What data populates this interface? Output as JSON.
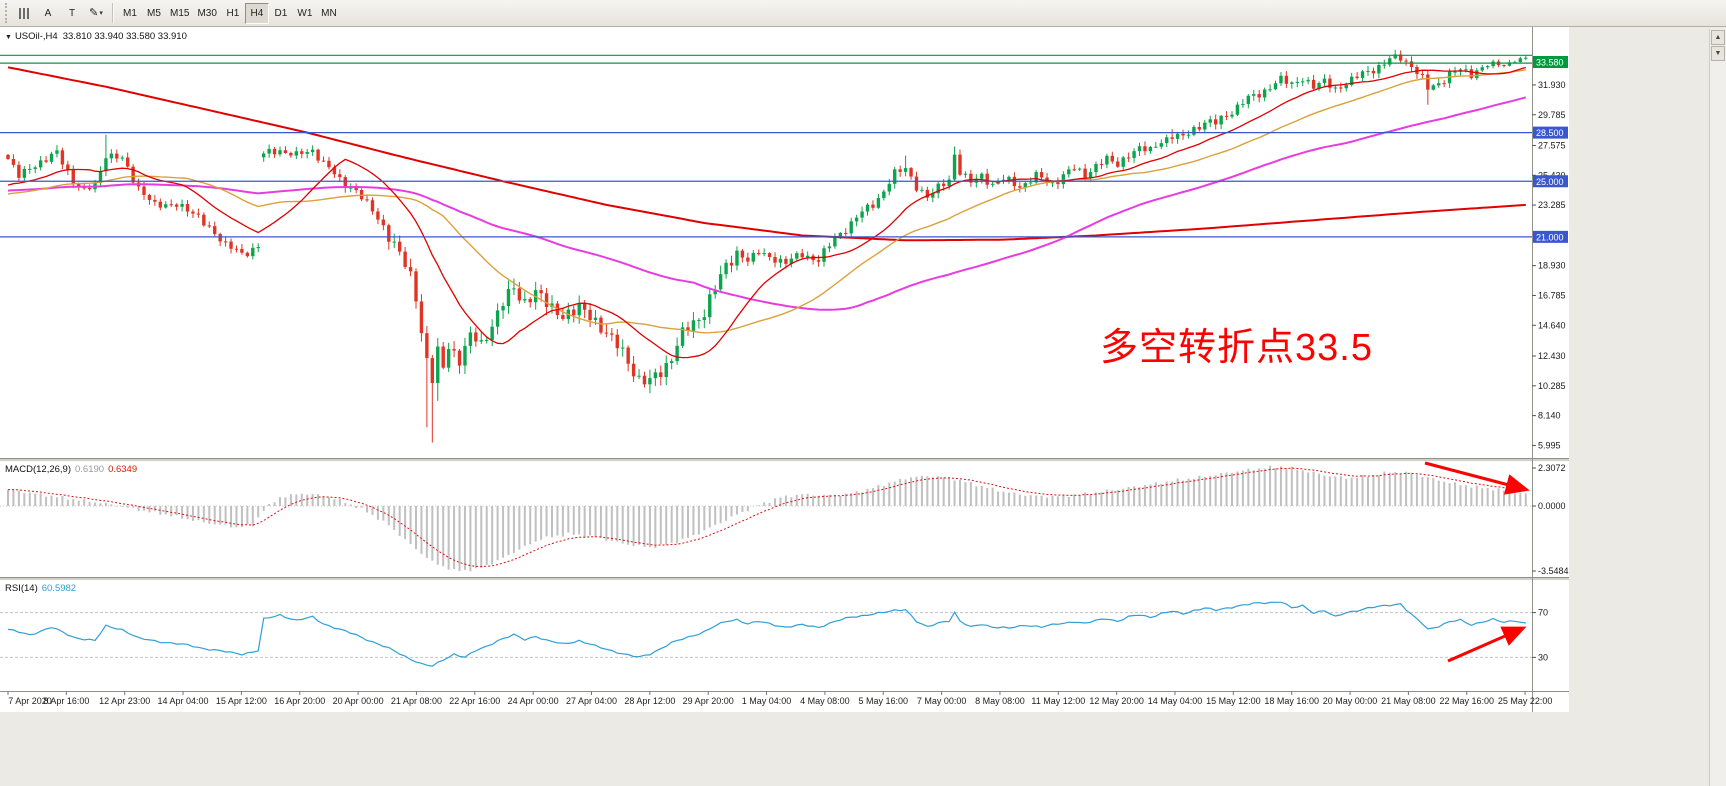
{
  "toolbar": {
    "buttons": [
      {
        "label": "A"
      },
      {
        "label": "T"
      }
    ],
    "timeframes": [
      "M1",
      "M5",
      "M15",
      "M30",
      "H1",
      "H4",
      "D1",
      "W1",
      "MN"
    ],
    "active_timeframe": "H4"
  },
  "icons": {
    "symbol_dropdown": "▼",
    "pencil": "✎",
    "caret": "▾",
    "scroll_up": "▲",
    "scroll_down": "▼"
  },
  "main_chart": {
    "symbol_period": "USOil-,H4",
    "ohlc": "33.810 33.940 33.580 33.910",
    "annotation": "多空转折点33.5",
    "price_ticks": [
      "31.930",
      "29.785",
      "27.575",
      "25.430",
      "23.285",
      "18.930",
      "16.785",
      "14.640",
      "12.430",
      "10.285",
      "8.140",
      "5.995"
    ],
    "badges": [
      {
        "label": "33.580",
        "price": 33.58,
        "color": "#009a3e"
      },
      {
        "label": "28.500",
        "price": 28.5,
        "color": "#3a57d0"
      },
      {
        "label": "25.000",
        "price": 25.0,
        "color": "#3a57d0"
      },
      {
        "label": "21.000",
        "price": 21.0,
        "color": "#3a57d0"
      }
    ],
    "hlines": [
      {
        "price": 34.06,
        "color": "#009a3e"
      },
      {
        "price": 33.5,
        "color": "#009a3e"
      },
      {
        "price": 28.5,
        "color": "#3a57d0"
      },
      {
        "price": 25.0,
        "color": "#3a57d0"
      },
      {
        "price": 21.0,
        "color": "#3a57d0"
      }
    ]
  },
  "macd": {
    "title": "MACD(12,26,9)",
    "value_main": "0.6190",
    "value_signal": "0.6349",
    "ticks": [
      "2.3072",
      "0.0000",
      "-3.5484"
    ]
  },
  "rsi": {
    "title": "RSI(14)",
    "value": "60.5982",
    "levels": [
      "70",
      "30"
    ]
  },
  "time_axis": {
    "labels": [
      "7 Apr 2020",
      "8 Apr 16:00",
      "12 Apr 23:00",
      "14 Apr 04:00",
      "15 Apr 12:00",
      "16 Apr 20:00",
      "20 Apr 00:00",
      "21 Apr 08:00",
      "22 Apr 16:00",
      "24 Apr 00:00",
      "27 Apr 04:00",
      "28 Apr 12:00",
      "29 Apr 20:00",
      "1 May 04:00",
      "4 May 08:00",
      "5 May 16:00",
      "7 May 00:00",
      "8 May 08:00",
      "11 May 12:00",
      "12 May 20:00",
      "14 May 04:00",
      "15 May 12:00",
      "18 May 16:00",
      "20 May 00:00",
      "21 May 08:00",
      "22 May 16:00",
      "25 May 22:00"
    ]
  },
  "colors": {
    "candle_up": "#0ca44c",
    "candle_down": "#e03424",
    "ma_red": "#e00000",
    "ma_orange": "#dba13c",
    "ma_magenta": "#e83ce0",
    "macd_bar": "#c0c0c0",
    "macd_signal": "#e01010",
    "rsi_line": "#2e9fd9",
    "annotation_red": "#ff0000",
    "hline_blue": "#3a57d0",
    "hline_green": "#009a3e"
  },
  "chart_data": {
    "type": "candlestick",
    "symbol": "USOil-",
    "timeframe": "H4",
    "current_ohlc": {
      "open": 33.81,
      "high": 33.94,
      "low": 33.58,
      "close": 33.91
    },
    "n_candles": 280,
    "levels": {
      "resistance": [
        34.06,
        33.5
      ],
      "support": [
        28.5,
        25.0,
        21.0
      ]
    },
    "close_anchors": [
      [
        0,
        26.6
      ],
      [
        2,
        25.4
      ],
      [
        5,
        26.2
      ],
      [
        9,
        27.0
      ],
      [
        12,
        25.1
      ],
      [
        14,
        24.2
      ],
      [
        16,
        24.7
      ],
      [
        18,
        27.0
      ],
      [
        21,
        26.5
      ],
      [
        24,
        24.6
      ],
      [
        27,
        23.2
      ],
      [
        31,
        23.4
      ],
      [
        35,
        22.4
      ],
      [
        38,
        21.3
      ],
      [
        40,
        20.4
      ],
      [
        43,
        19.8
      ],
      [
        46,
        20.3
      ],
      [
        47,
        26.9
      ],
      [
        50,
        27.3
      ],
      [
        53,
        26.8
      ],
      [
        56,
        27.3
      ],
      [
        58,
        26.3
      ],
      [
        61,
        25.1
      ],
      [
        64,
        24.3
      ],
      [
        67,
        22.9
      ],
      [
        70,
        21.1
      ],
      [
        72,
        19.9
      ],
      [
        74,
        18.0
      ],
      [
        75,
        16.6
      ],
      [
        76,
        14.2
      ],
      [
        77,
        12.3
      ],
      [
        78,
        10.9
      ],
      [
        79,
        12.6
      ],
      [
        80,
        11.4
      ],
      [
        81,
        13.0
      ],
      [
        83,
        12.4
      ],
      [
        85,
        13.8
      ],
      [
        87,
        13.1
      ],
      [
        89,
        14.9
      ],
      [
        91,
        16.2
      ],
      [
        93,
        17.2
      ],
      [
        95,
        16.4
      ],
      [
        97,
        17.0
      ],
      [
        99,
        16.2
      ],
      [
        102,
        15.3
      ],
      [
        105,
        15.9
      ],
      [
        108,
        14.9
      ],
      [
        110,
        14.2
      ],
      [
        112,
        13.1
      ],
      [
        114,
        12.0
      ],
      [
        116,
        10.9
      ],
      [
        118,
        10.4
      ],
      [
        120,
        11.3
      ],
      [
        122,
        12.5
      ],
      [
        124,
        13.9
      ],
      [
        126,
        14.8
      ],
      [
        128,
        15.7
      ],
      [
        130,
        17.3
      ],
      [
        132,
        18.9
      ],
      [
        134,
        19.9
      ],
      [
        136,
        19.3
      ],
      [
        138,
        19.9
      ],
      [
        140,
        19.5
      ],
      [
        143,
        19.2
      ],
      [
        146,
        19.7
      ],
      [
        149,
        19.4
      ],
      [
        151,
        20.3
      ],
      [
        153,
        21.3
      ],
      [
        155,
        22.0
      ],
      [
        157,
        22.7
      ],
      [
        159,
        23.4
      ],
      [
        161,
        24.3
      ],
      [
        163,
        25.5
      ],
      [
        165,
        26.0
      ],
      [
        167,
        24.6
      ],
      [
        169,
        23.8
      ],
      [
        171,
        24.6
      ],
      [
        173,
        25.1
      ],
      [
        174,
        26.9
      ],
      [
        175,
        25.7
      ],
      [
        177,
        24.9
      ],
      [
        179,
        25.4
      ],
      [
        181,
        24.8
      ],
      [
        183,
        25.1
      ],
      [
        186,
        24.7
      ],
      [
        189,
        25.3
      ],
      [
        192,
        24.9
      ],
      [
        194,
        25.4
      ],
      [
        196,
        25.9
      ],
      [
        198,
        25.5
      ],
      [
        200,
        26.1
      ],
      [
        202,
        26.6
      ],
      [
        204,
        26.2
      ],
      [
        206,
        26.9
      ],
      [
        208,
        27.4
      ],
      [
        210,
        27.2
      ],
      [
        212,
        27.9
      ],
      [
        214,
        28.3
      ],
      [
        216,
        28.1
      ],
      [
        218,
        28.8
      ],
      [
        220,
        29.3
      ],
      [
        222,
        29.1
      ],
      [
        224,
        29.8
      ],
      [
        226,
        30.4
      ],
      [
        228,
        30.9
      ],
      [
        230,
        31.3
      ],
      [
        232,
        31.8
      ],
      [
        234,
        32.3
      ],
      [
        236,
        32.0
      ],
      [
        238,
        32.4
      ],
      [
        240,
        31.8
      ],
      [
        242,
        32.2
      ],
      [
        244,
        31.6
      ],
      [
        246,
        32.1
      ],
      [
        248,
        32.5
      ],
      [
        250,
        32.9
      ],
      [
        252,
        33.3
      ],
      [
        254,
        33.7
      ],
      [
        256,
        33.9
      ],
      [
        258,
        33.4
      ],
      [
        260,
        32.3
      ],
      [
        261,
        31.6
      ],
      [
        263,
        32.1
      ],
      [
        265,
        32.7
      ],
      [
        267,
        33.0
      ],
      [
        269,
        32.7
      ],
      [
        271,
        33.2
      ],
      [
        273,
        33.5
      ],
      [
        275,
        33.3
      ],
      [
        277,
        33.7
      ],
      [
        279,
        33.91
      ]
    ],
    "special_wicks": [
      {
        "i": 9,
        "high": 27.6
      },
      {
        "i": 18,
        "high": 28.35
      },
      {
        "i": 44,
        "low": 19.55
      },
      {
        "i": 77,
        "low": 7.3
      },
      {
        "i": 78,
        "low": 6.2
      },
      {
        "i": 79,
        "low": 9.2
      },
      {
        "i": 93,
        "high": 18.0
      },
      {
        "i": 118,
        "low": 9.75
      },
      {
        "i": 165,
        "high": 26.85
      },
      {
        "i": 174,
        "high": 27.5
      },
      {
        "i": 214,
        "high": 28.75
      },
      {
        "i": 234,
        "high": 32.65
      },
      {
        "i": 254,
        "high": 34.0
      },
      {
        "i": 256,
        "high": 34.3
      },
      {
        "i": 261,
        "low": 30.5
      }
    ],
    "gap_opens": [
      {
        "i": 47,
        "open": 26.72
      }
    ],
    "ma_slow_anchors": [
      [
        0,
        33.2
      ],
      [
        18,
        31.8
      ],
      [
        36,
        30.2
      ],
      [
        55,
        28.5
      ],
      [
        73,
        26.7
      ],
      [
        91,
        25.0
      ],
      [
        110,
        23.3
      ],
      [
        128,
        22.0
      ],
      [
        146,
        21.1
      ],
      [
        165,
        20.75
      ],
      [
        183,
        20.8
      ],
      [
        200,
        21.1
      ],
      [
        220,
        21.6
      ],
      [
        240,
        22.2
      ],
      [
        260,
        22.8
      ],
      [
        279,
        23.3
      ]
    ],
    "ma_periods": {
      "fast_red": 16,
      "orange": 34,
      "magenta": 80
    },
    "macd_range": [
      -3.5484,
      2.3072
    ],
    "macd_current": {
      "main": 0.619,
      "signal": 0.6349
    },
    "macd_anchors": [
      [
        0,
        0.85
      ],
      [
        6,
        0.6
      ],
      [
        12,
        0.35
      ],
      [
        18,
        0.12
      ],
      [
        24,
        -0.2
      ],
      [
        30,
        -0.5
      ],
      [
        36,
        -0.85
      ],
      [
        42,
        -1.1
      ],
      [
        45,
        -1.0
      ],
      [
        47,
        -0.2
      ],
      [
        50,
        0.45
      ],
      [
        54,
        0.65
      ],
      [
        58,
        0.55
      ],
      [
        62,
        0.2
      ],
      [
        66,
        -0.3
      ],
      [
        70,
        -1.0
      ],
      [
        74,
        -2.0
      ],
      [
        78,
        -2.9
      ],
      [
        82,
        -3.35
      ],
      [
        86,
        -3.3
      ],
      [
        90,
        -2.85
      ],
      [
        94,
        -2.25
      ],
      [
        98,
        -1.7
      ],
      [
        103,
        -1.45
      ],
      [
        108,
        -1.6
      ],
      [
        113,
        -1.95
      ],
      [
        118,
        -2.15
      ],
      [
        122,
        -1.95
      ],
      [
        126,
        -1.55
      ],
      [
        130,
        -1.0
      ],
      [
        134,
        -0.45
      ],
      [
        138,
        0.05
      ],
      [
        142,
        0.45
      ],
      [
        146,
        0.6
      ],
      [
        150,
        0.55
      ],
      [
        154,
        0.6
      ],
      [
        158,
        0.85
      ],
      [
        162,
        1.2
      ],
      [
        166,
        1.5
      ],
      [
        170,
        1.55
      ],
      [
        174,
        1.4
      ],
      [
        178,
        1.1
      ],
      [
        182,
        0.8
      ],
      [
        186,
        0.6
      ],
      [
        190,
        0.5
      ],
      [
        194,
        0.52
      ],
      [
        198,
        0.62
      ],
      [
        202,
        0.78
      ],
      [
        206,
        0.95
      ],
      [
        210,
        1.12
      ],
      [
        214,
        1.3
      ],
      [
        218,
        1.45
      ],
      [
        222,
        1.62
      ],
      [
        226,
        1.8
      ],
      [
        230,
        1.95
      ],
      [
        234,
        2.05
      ],
      [
        238,
        1.85
      ],
      [
        242,
        1.6
      ],
      [
        246,
        1.45
      ],
      [
        250,
        1.55
      ],
      [
        254,
        1.75
      ],
      [
        258,
        1.7
      ],
      [
        262,
        1.4
      ],
      [
        266,
        1.15
      ],
      [
        270,
        0.98
      ],
      [
        274,
        0.85
      ],
      [
        279,
        0.62
      ]
    ],
    "rsi_current": 60.5982,
    "rsi_levels": [
      70,
      30
    ],
    "rsi_anchors": [
      [
        0,
        55
      ],
      [
        4,
        50
      ],
      [
        8,
        57
      ],
      [
        12,
        48
      ],
      [
        16,
        45
      ],
      [
        18,
        58
      ],
      [
        21,
        55
      ],
      [
        24,
        47
      ],
      [
        28,
        44
      ],
      [
        33,
        41
      ],
      [
        36,
        38
      ],
      [
        40,
        35
      ],
      [
        43,
        33
      ],
      [
        46,
        36
      ],
      [
        47,
        64
      ],
      [
        50,
        68
      ],
      [
        53,
        63
      ],
      [
        56,
        66
      ],
      [
        58,
        60
      ],
      [
        61,
        55
      ],
      [
        64,
        50
      ],
      [
        67,
        44
      ],
      [
        70,
        38
      ],
      [
        73,
        31
      ],
      [
        76,
        24
      ],
      [
        78,
        22
      ],
      [
        80,
        28
      ],
      [
        82,
        33
      ],
      [
        84,
        30
      ],
      [
        86,
        36
      ],
      [
        88,
        40
      ],
      [
        90,
        45
      ],
      [
        93,
        50
      ],
      [
        95,
        46
      ],
      [
        97,
        49
      ],
      [
        99,
        45
      ],
      [
        102,
        42
      ],
      [
        105,
        45
      ],
      [
        108,
        40
      ],
      [
        111,
        36
      ],
      [
        114,
        32
      ],
      [
        116,
        30
      ],
      [
        118,
        33
      ],
      [
        120,
        38
      ],
      [
        122,
        43
      ],
      [
        125,
        48
      ],
      [
        128,
        53
      ],
      [
        130,
        58
      ],
      [
        132,
        62
      ],
      [
        134,
        64
      ],
      [
        136,
        60
      ],
      [
        138,
        62
      ],
      [
        140,
        60
      ],
      [
        143,
        57
      ],
      [
        146,
        59
      ],
      [
        149,
        57
      ],
      [
        152,
        62
      ],
      [
        155,
        66
      ],
      [
        158,
        68
      ],
      [
        161,
        70
      ],
      [
        163,
        72
      ],
      [
        165,
        73
      ],
      [
        167,
        62
      ],
      [
        169,
        57
      ],
      [
        171,
        61
      ],
      [
        173,
        63
      ],
      [
        174,
        70
      ],
      [
        175,
        62
      ],
      [
        177,
        57
      ],
      [
        179,
        60
      ],
      [
        181,
        57
      ],
      [
        184,
        56
      ],
      [
        187,
        59
      ],
      [
        190,
        57
      ],
      [
        193,
        60
      ],
      [
        196,
        62
      ],
      [
        198,
        60
      ],
      [
        200,
        63
      ],
      [
        202,
        65
      ],
      [
        204,
        62
      ],
      [
        206,
        66
      ],
      [
        208,
        68
      ],
      [
        210,
        66
      ],
      [
        212,
        69
      ],
      [
        214,
        71
      ],
      [
        216,
        69
      ],
      [
        218,
        72
      ],
      [
        220,
        74
      ],
      [
        222,
        72
      ],
      [
        224,
        74
      ],
      [
        226,
        76
      ],
      [
        229,
        78
      ],
      [
        232,
        79
      ],
      [
        234,
        80
      ],
      [
        236,
        74
      ],
      [
        238,
        76
      ],
      [
        240,
        70
      ],
      [
        242,
        72
      ],
      [
        244,
        66
      ],
      [
        246,
        70
      ],
      [
        248,
        72
      ],
      [
        250,
        74
      ],
      [
        253,
        76
      ],
      [
        256,
        78
      ],
      [
        258,
        68
      ],
      [
        260,
        60
      ],
      [
        261,
        55
      ],
      [
        263,
        58
      ],
      [
        265,
        62
      ],
      [
        267,
        63
      ],
      [
        269,
        59
      ],
      [
        271,
        62
      ],
      [
        273,
        64
      ],
      [
        275,
        61
      ],
      [
        277,
        63
      ],
      [
        279,
        60.6
      ]
    ]
  }
}
